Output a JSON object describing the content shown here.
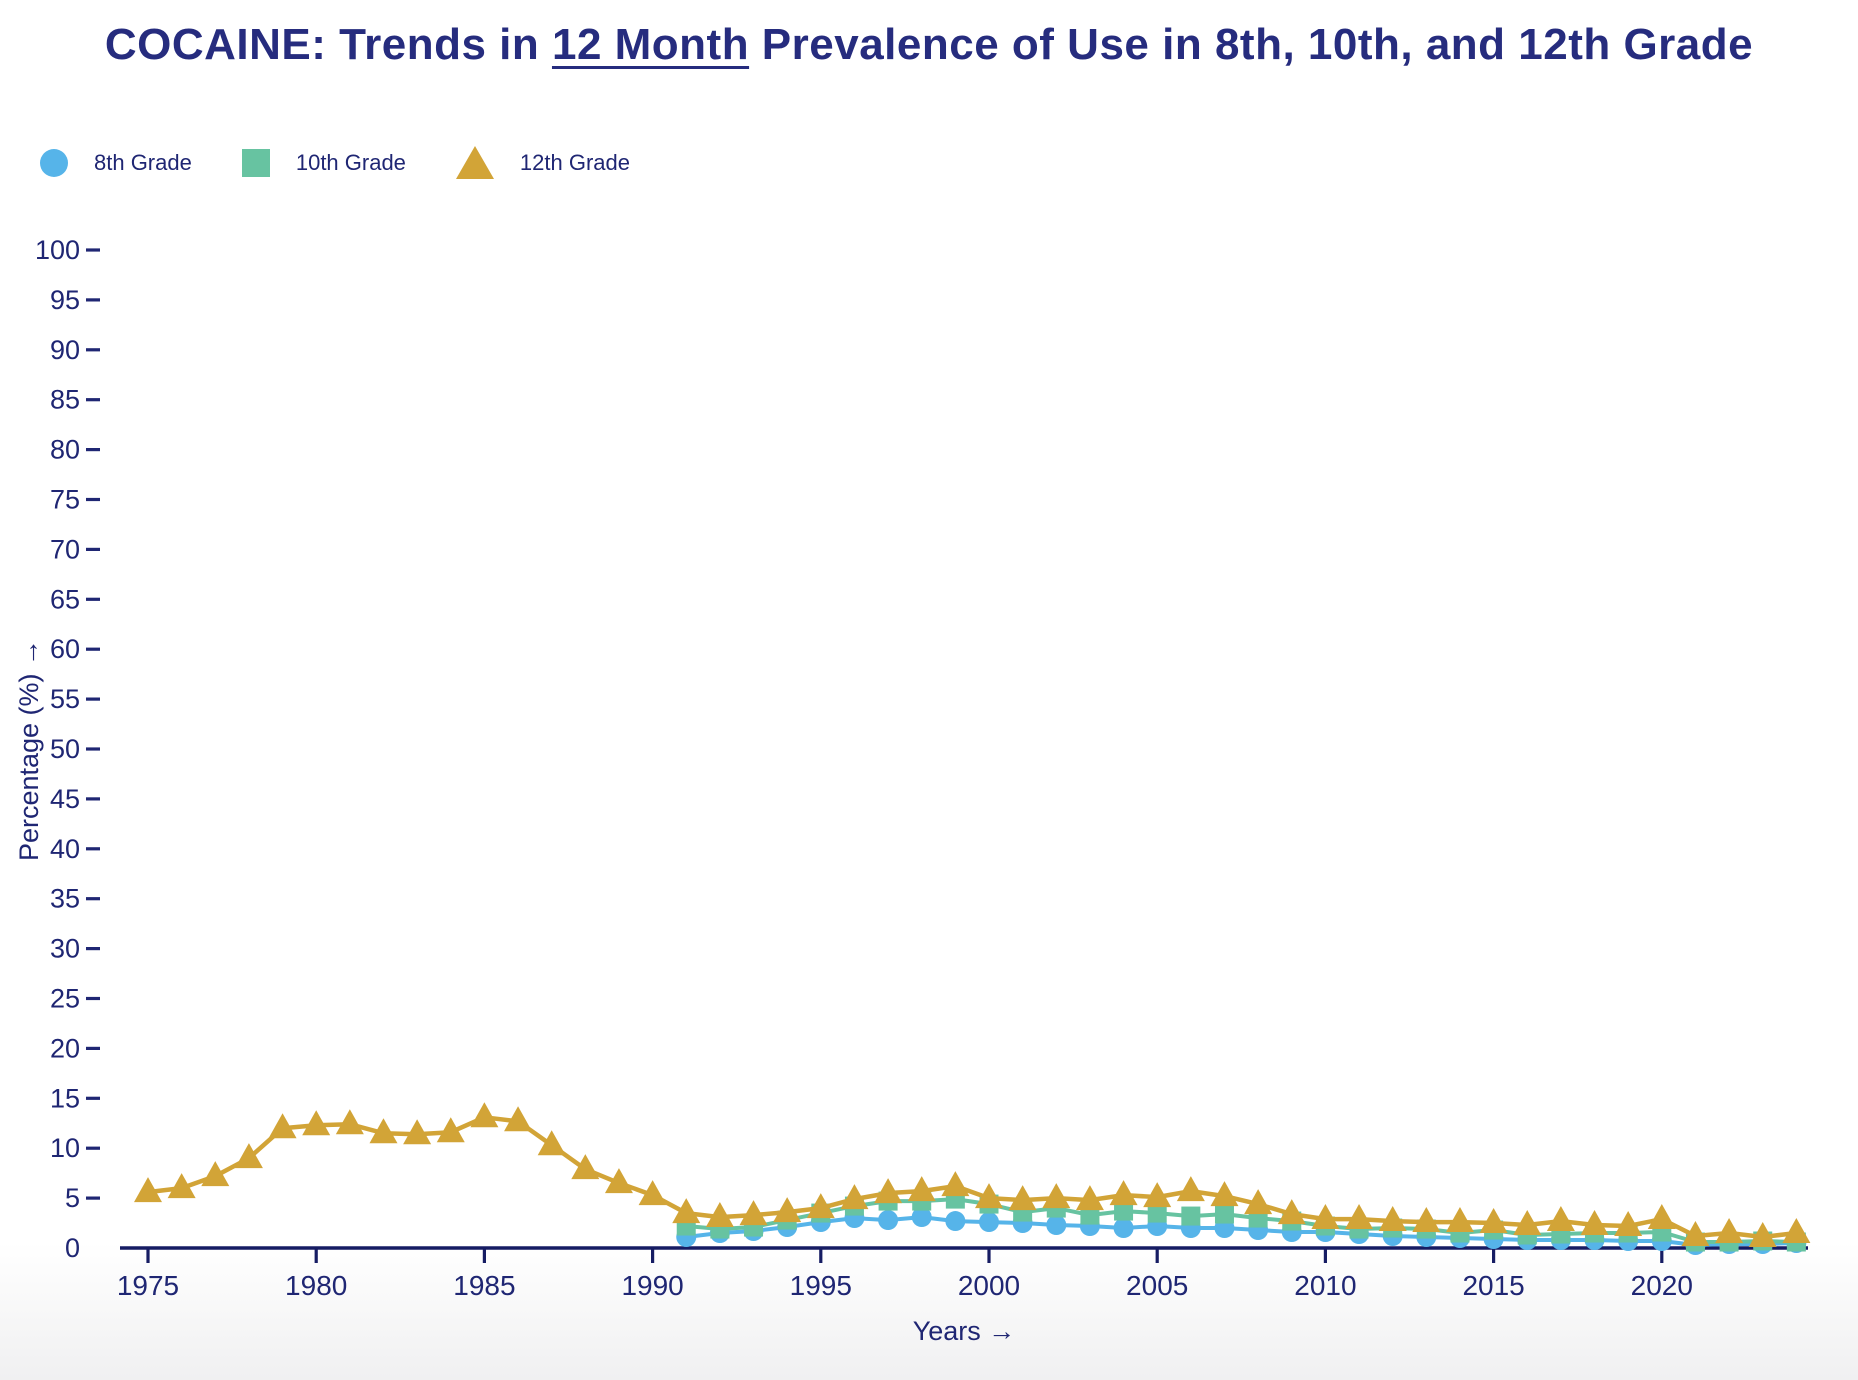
{
  "title": {
    "prefix": "COCAINE: Trends in ",
    "underlined": "12 Month",
    "suffix": " Prevalence of Use in 8th, 10th, and 12th Grade",
    "color": "#262c7e"
  },
  "legend": [
    {
      "label": "8th Grade",
      "marker": "circle",
      "color": "#56b4e9"
    },
    {
      "label": "10th Grade",
      "marker": "square",
      "color": "#67c3a1"
    },
    {
      "label": "12th Grade",
      "marker": "triangle",
      "color": "#d2a437"
    }
  ],
  "chart_data": {
    "type": "line",
    "title": "COCAINE: Trends in 12 Month Prevalence of Use in 8th, 10th, and 12th Grade",
    "xlabel": "Years →",
    "ylabel": "Percentage (%) →",
    "axis_color": "#161c63",
    "label_color": "#1f2673",
    "grid": false,
    "legend_position": "top-left",
    "ylim": [
      0,
      100
    ],
    "xlim": [
      1974,
      2025
    ],
    "y_ticks": [
      0,
      5,
      10,
      15,
      20,
      25,
      30,
      35,
      40,
      45,
      50,
      55,
      60,
      65,
      70,
      75,
      80,
      85,
      90,
      95,
      100
    ],
    "x_ticks": [
      1975,
      1980,
      1985,
      1990,
      1995,
      2000,
      2005,
      2010,
      2015,
      2020
    ],
    "series": [
      {
        "name": "8th Grade",
        "marker": "circle",
        "color": "#56b4e9",
        "start_year": 1991,
        "values": [
          1.1,
          1.5,
          1.7,
          2.1,
          2.6,
          3.0,
          2.8,
          3.1,
          2.7,
          2.6,
          2.5,
          2.3,
          2.2,
          2.0,
          2.2,
          2.0,
          2.0,
          1.8,
          1.6,
          1.6,
          1.4,
          1.2,
          1.1,
          1.0,
          0.9,
          0.8,
          0.8,
          0.8,
          0.7,
          0.7,
          0.3,
          0.4,
          0.4,
          0.5
        ]
      },
      {
        "name": "10th Grade",
        "marker": "square",
        "color": "#67c3a1",
        "start_year": 1991,
        "values": [
          2.2,
          1.9,
          2.1,
          2.8,
          3.5,
          4.2,
          4.7,
          4.7,
          4.9,
          4.4,
          3.6,
          4.0,
          3.3,
          3.7,
          3.5,
          3.2,
          3.4,
          3.0,
          2.7,
          2.2,
          1.9,
          2.0,
          1.9,
          1.5,
          1.8,
          1.3,
          1.4,
          1.5,
          1.5,
          1.6,
          0.6,
          0.6,
          0.7,
          0.6
        ]
      },
      {
        "name": "12th Grade",
        "marker": "triangle",
        "color": "#d2a437",
        "start_year": 1975,
        "values": [
          5.6,
          6.0,
          7.2,
          9.0,
          12.0,
          12.3,
          12.4,
          11.5,
          11.4,
          11.6,
          13.1,
          12.7,
          10.3,
          7.9,
          6.5,
          5.3,
          3.5,
          3.1,
          3.3,
          3.6,
          4.0,
          4.9,
          5.5,
          5.7,
          6.2,
          5.0,
          4.8,
          5.0,
          4.8,
          5.3,
          5.1,
          5.7,
          5.2,
          4.4,
          3.4,
          2.9,
          2.9,
          2.7,
          2.6,
          2.6,
          2.5,
          2.3,
          2.7,
          2.3,
          2.2,
          2.9,
          1.2,
          1.5,
          1.1,
          1.5
        ]
      }
    ]
  }
}
